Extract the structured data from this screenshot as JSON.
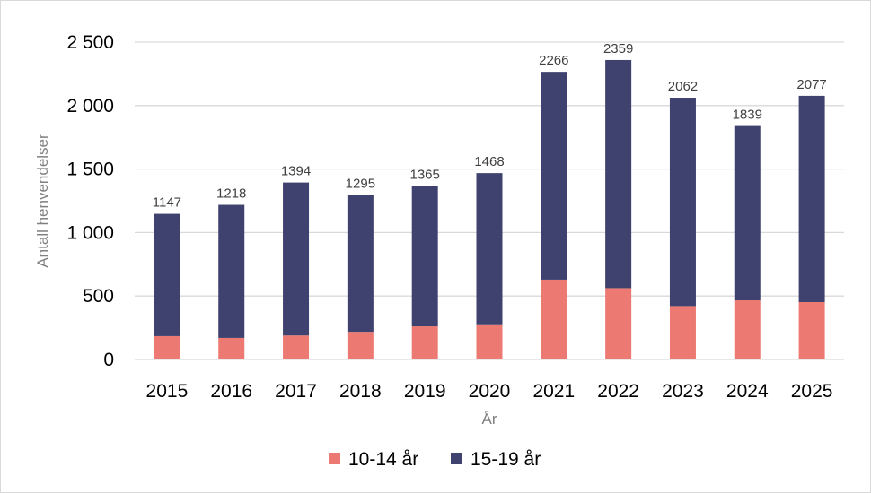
{
  "chart_data": {
    "type": "bar",
    "stacked": true,
    "categories": [
      "2015",
      "2016",
      "2017",
      "2018",
      "2019",
      "2020",
      "2021",
      "2022",
      "2023",
      "2024",
      "2025"
    ],
    "series": [
      {
        "name": "10-14 år",
        "color": "#ec7a72",
        "values": [
          184,
          170,
          189,
          218,
          261,
          270,
          629,
          562,
          421,
          466,
          452
        ]
      },
      {
        "name": "15-19 år",
        "color": "#3f416e",
        "values": [
          963,
          1048,
          1205,
          1077,
          1104,
          1198,
          1637,
          1797,
          1641,
          1373,
          1625
        ]
      }
    ],
    "totals": [
      1147,
      1218,
      1394,
      1295,
      1365,
      1468,
      2266,
      2359,
      2062,
      1839,
      2077
    ],
    "xlabel": "År",
    "ylabel": "Antall henvendelser",
    "ylim": [
      0,
      2500
    ],
    "yticks": [
      0,
      500,
      1000,
      1500,
      2000,
      2500
    ],
    "ytick_labels": [
      "0",
      "500",
      "1 000",
      "1 500",
      "2 000",
      "2 500"
    ],
    "grid": true,
    "legend": "bottom"
  }
}
